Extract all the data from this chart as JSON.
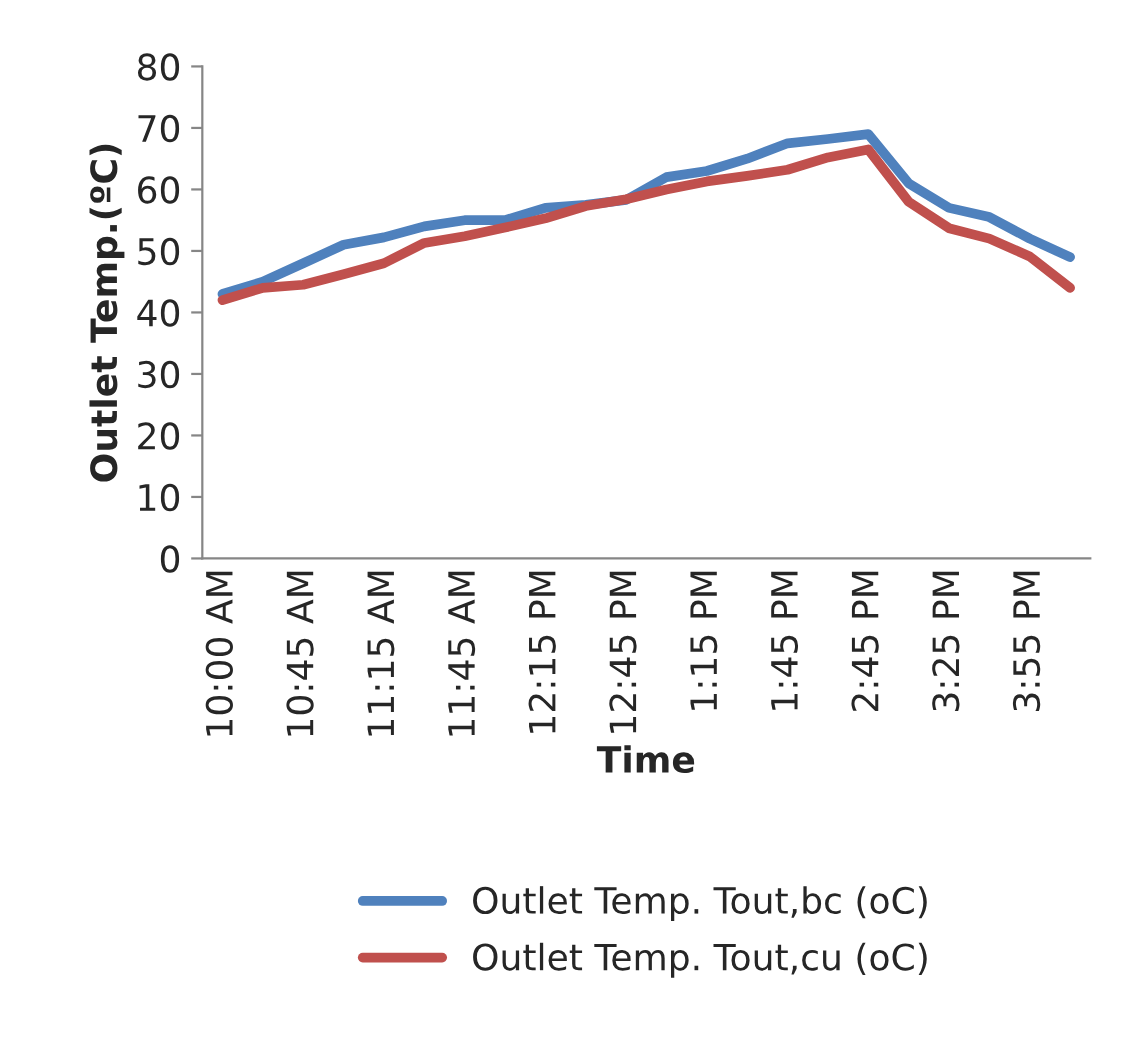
{
  "chart_data": {
    "type": "line",
    "xlabel": "Time",
    "ylabel": "Outlet Temp.(ºC)",
    "categories": [
      "10:00 AM",
      null,
      "10:45 AM",
      null,
      "11:15 AM",
      null,
      "11:45 AM",
      null,
      "12:15 PM",
      null,
      "12:45 PM",
      null,
      "1:15 PM",
      null,
      "1:45 PM",
      null,
      "2:45 PM",
      null,
      "3:25 PM",
      null,
      "3:55 PM",
      null
    ],
    "series": [
      {
        "name": "Outlet Temp. Tout,bc (oC)",
        "color": "#4f81bd",
        "values": [
          43,
          45,
          48,
          51,
          52.2,
          54,
          55,
          55,
          57,
          57.5,
          58.3,
          62,
          63,
          65,
          67.5,
          68.2,
          69,
          61,
          57,
          55.5,
          52,
          49
        ]
      },
      {
        "name": "Outlet Temp. Tout,cu (oC)",
        "color": "#c0504d",
        "values": [
          42,
          44,
          44.5,
          46.2,
          48,
          51.3,
          52.4,
          53.8,
          55.3,
          57.3,
          58.4,
          60,
          61.3,
          62.2,
          63.2,
          65.2,
          66.5,
          58,
          53.7,
          52,
          49.1,
          44
        ]
      }
    ],
    "ylim": [
      0,
      80
    ],
    "yticks": [
      0,
      10,
      20,
      30,
      40,
      50,
      60,
      70,
      80
    ],
    "grid": false,
    "legend": "bottom",
    "marker": "none",
    "line_style": "solid"
  }
}
